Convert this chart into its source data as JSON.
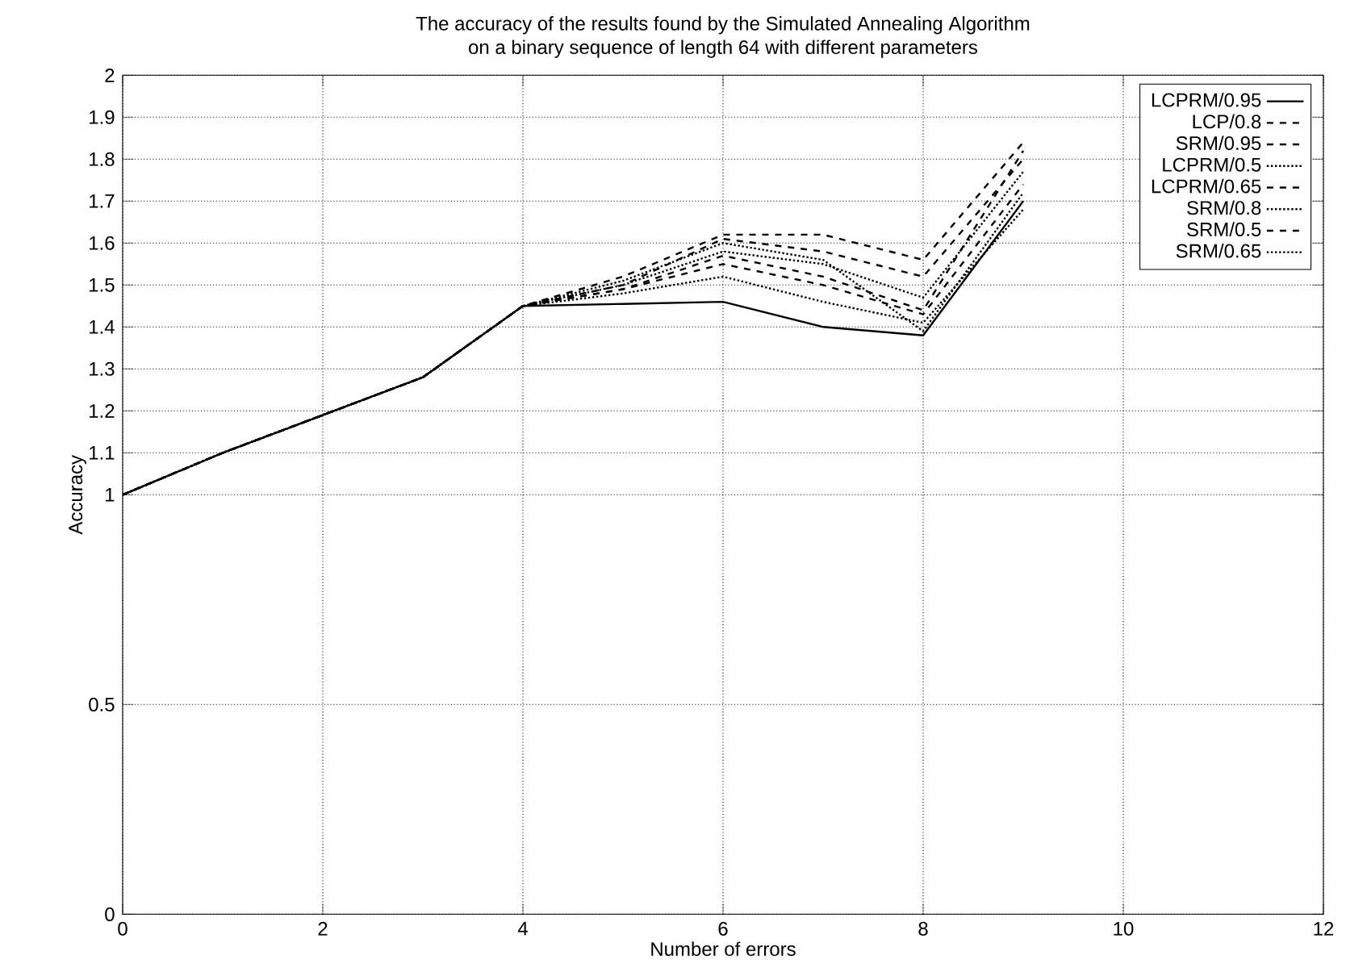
{
  "chart_data": {
    "type": "line",
    "title": "The accuracy of the results found by the Simulated Annealing Algorithm",
    "subtitle": "on a binary sequence of length 64 with different parameters",
    "xlabel": "Number of errors",
    "ylabel": "Accuracy",
    "x": [
      0,
      1,
      2,
      3,
      4,
      5,
      6,
      7,
      8,
      9
    ],
    "series": [
      {
        "name": "LCPRM/0.95",
        "color": "#000000",
        "line_style": "solid",
        "values": [
          1,
          1.1,
          1.19,
          1.28,
          1.45,
          1.455,
          1.46,
          1.4,
          1.38,
          1.7
        ]
      },
      {
        "name": "LCP/0.8",
        "color": "#000000",
        "line_style": "dashed",
        "values": [
          1,
          1.1,
          1.19,
          1.28,
          1.45,
          1.5,
          1.61,
          1.58,
          1.52,
          1.8
        ]
      },
      {
        "name": "SRM/0.95",
        "color": "#000000",
        "line_style": "dashed",
        "values": [
          1,
          1.1,
          1.19,
          1.28,
          1.45,
          1.49,
          1.55,
          1.5,
          1.43,
          1.74
        ]
      },
      {
        "name": "LCPRM/0.5",
        "color": "#000000",
        "line_style": "dotted",
        "values": [
          1,
          1.1,
          1.19,
          1.28,
          1.45,
          1.5,
          1.58,
          1.55,
          1.47,
          1.77
        ]
      },
      {
        "name": "LCPRM/0.65",
        "color": "#000000",
        "line_style": "dashed",
        "values": [
          1,
          1.1,
          1.19,
          1.28,
          1.45,
          1.52,
          1.62,
          1.62,
          1.56,
          1.84
        ]
      },
      {
        "name": "SRM/0.8",
        "color": "#000000",
        "line_style": "dotted",
        "values": [
          1,
          1.1,
          1.19,
          1.28,
          1.45,
          1.48,
          1.52,
          1.46,
          1.41,
          1.68
        ]
      },
      {
        "name": "SRM/0.5",
        "color": "#000000",
        "line_style": "dashed",
        "values": [
          1,
          1.1,
          1.19,
          1.28,
          1.45,
          1.49,
          1.57,
          1.52,
          1.44,
          1.82
        ]
      },
      {
        "name": "SRM/0.65",
        "color": "#000000",
        "line_style": "dotted",
        "values": [
          1,
          1.1,
          1.19,
          1.28,
          1.45,
          1.51,
          1.6,
          1.56,
          1.39,
          1.72
        ]
      }
    ],
    "xlim": [
      0,
      12
    ],
    "xticks": [
      0,
      2,
      4,
      6,
      8,
      10,
      12
    ],
    "ylim": [
      0,
      2
    ],
    "yticks": [
      0,
      0.5,
      1,
      1.1,
      1.2,
      1.3,
      1.4,
      1.5,
      1.6,
      1.7,
      1.8,
      1.9,
      2
    ],
    "grid": true,
    "legend": "top right",
    "marker": "none"
  }
}
